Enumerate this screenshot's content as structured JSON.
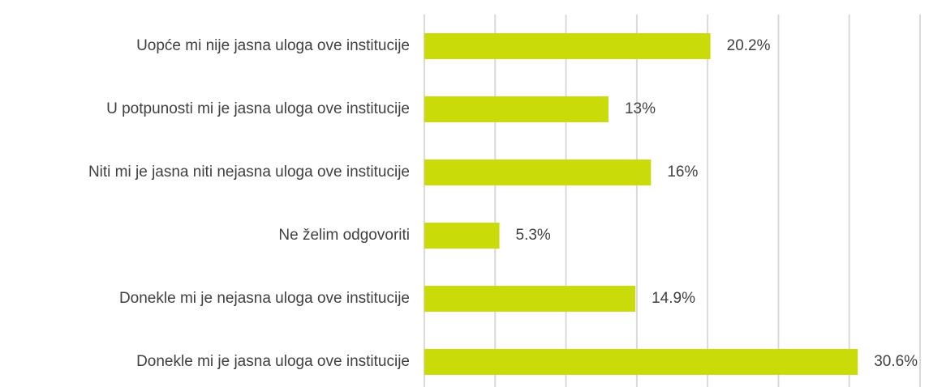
{
  "chart_data": {
    "type": "barh",
    "categories": [
      "Uopće mi nije jasna uloga ove institucije",
      "U potpunosti mi je jasna uloga ove institucije",
      "Niti mi je jasna niti nejasna uloga ove institucije",
      "Ne želim odgovoriti",
      "Donekle mi je nejasna uloga ove institucije",
      "Donekle mi je jasna uloga ove institucije"
    ],
    "values": [
      20.2,
      13,
      16,
      5.3,
      14.9,
      30.6
    ],
    "value_labels": [
      "20.2%",
      "13%",
      "16%",
      "5.3%",
      "14.9%",
      "30.6%"
    ],
    "color": "#c9dc0a",
    "xlim": [
      0,
      35
    ],
    "xticks": [
      0,
      5,
      10,
      15,
      20,
      25,
      30,
      35
    ],
    "grid": true
  }
}
